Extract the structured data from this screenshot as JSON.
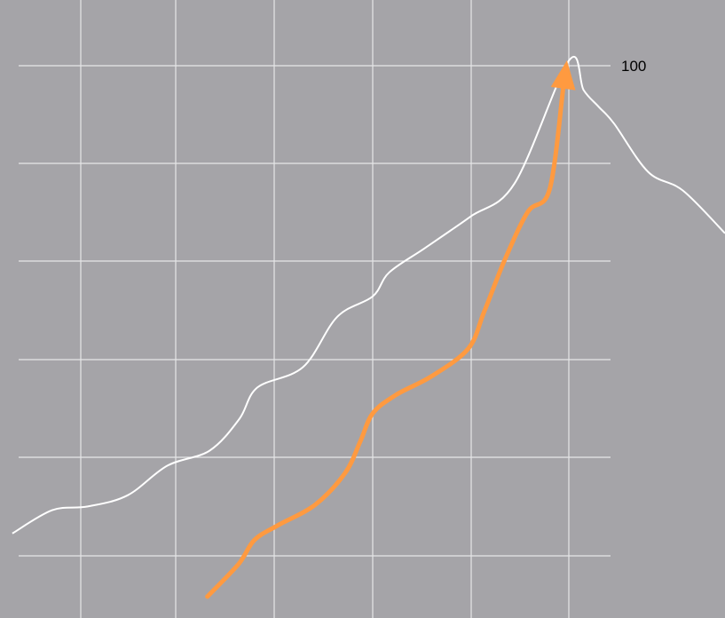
{
  "chart_data": {
    "type": "line",
    "grid": true,
    "y_tick_labels": [
      "100"
    ],
    "ylim": [
      40,
      106.5
    ],
    "xlim": [
      0,
      100
    ],
    "series": [
      {
        "kind": "curve",
        "color": "#ffffff",
        "points": [
          [
            1.7,
            49.1
          ],
          [
            7.2,
            51.6
          ],
          [
            12.1,
            52.0
          ],
          [
            17.6,
            53.2
          ],
          [
            23.1,
            56.4
          ],
          [
            28.9,
            58.0
          ],
          [
            33.0,
            61.4
          ],
          [
            35.5,
            64.8
          ],
          [
            41.8,
            67.0
          ],
          [
            46.5,
            72.4
          ],
          [
            51.4,
            74.6
          ],
          [
            53.7,
            77.2
          ],
          [
            58.6,
            79.8
          ],
          [
            64.9,
            83.2
          ],
          [
            71.0,
            86.8
          ],
          [
            78.5,
            100.0
          ],
          [
            80.5,
            96.8
          ],
          [
            82.6,
            95.0
          ],
          [
            84.7,
            93.2
          ],
          [
            89.4,
            88.0
          ],
          [
            94.2,
            86.0
          ],
          [
            100.0,
            81.4
          ]
        ]
      },
      {
        "kind": "arrow",
        "color": "#ff9a40",
        "points": [
          [
            28.6,
            42.3
          ],
          [
            32.9,
            45.8
          ],
          [
            35.1,
            48.4
          ],
          [
            38.4,
            50.0
          ],
          [
            43.5,
            52.2
          ],
          [
            47.6,
            55.6
          ],
          [
            49.7,
            59.0
          ],
          [
            51.4,
            62.0
          ],
          [
            54.6,
            64.0
          ],
          [
            59.5,
            66.0
          ],
          [
            64.6,
            69.0
          ],
          [
            66.8,
            73.0
          ],
          [
            69.6,
            78.5
          ],
          [
            72.8,
            83.7
          ],
          [
            75.8,
            86.1
          ],
          [
            78.2,
            100.0
          ]
        ]
      }
    ]
  }
}
